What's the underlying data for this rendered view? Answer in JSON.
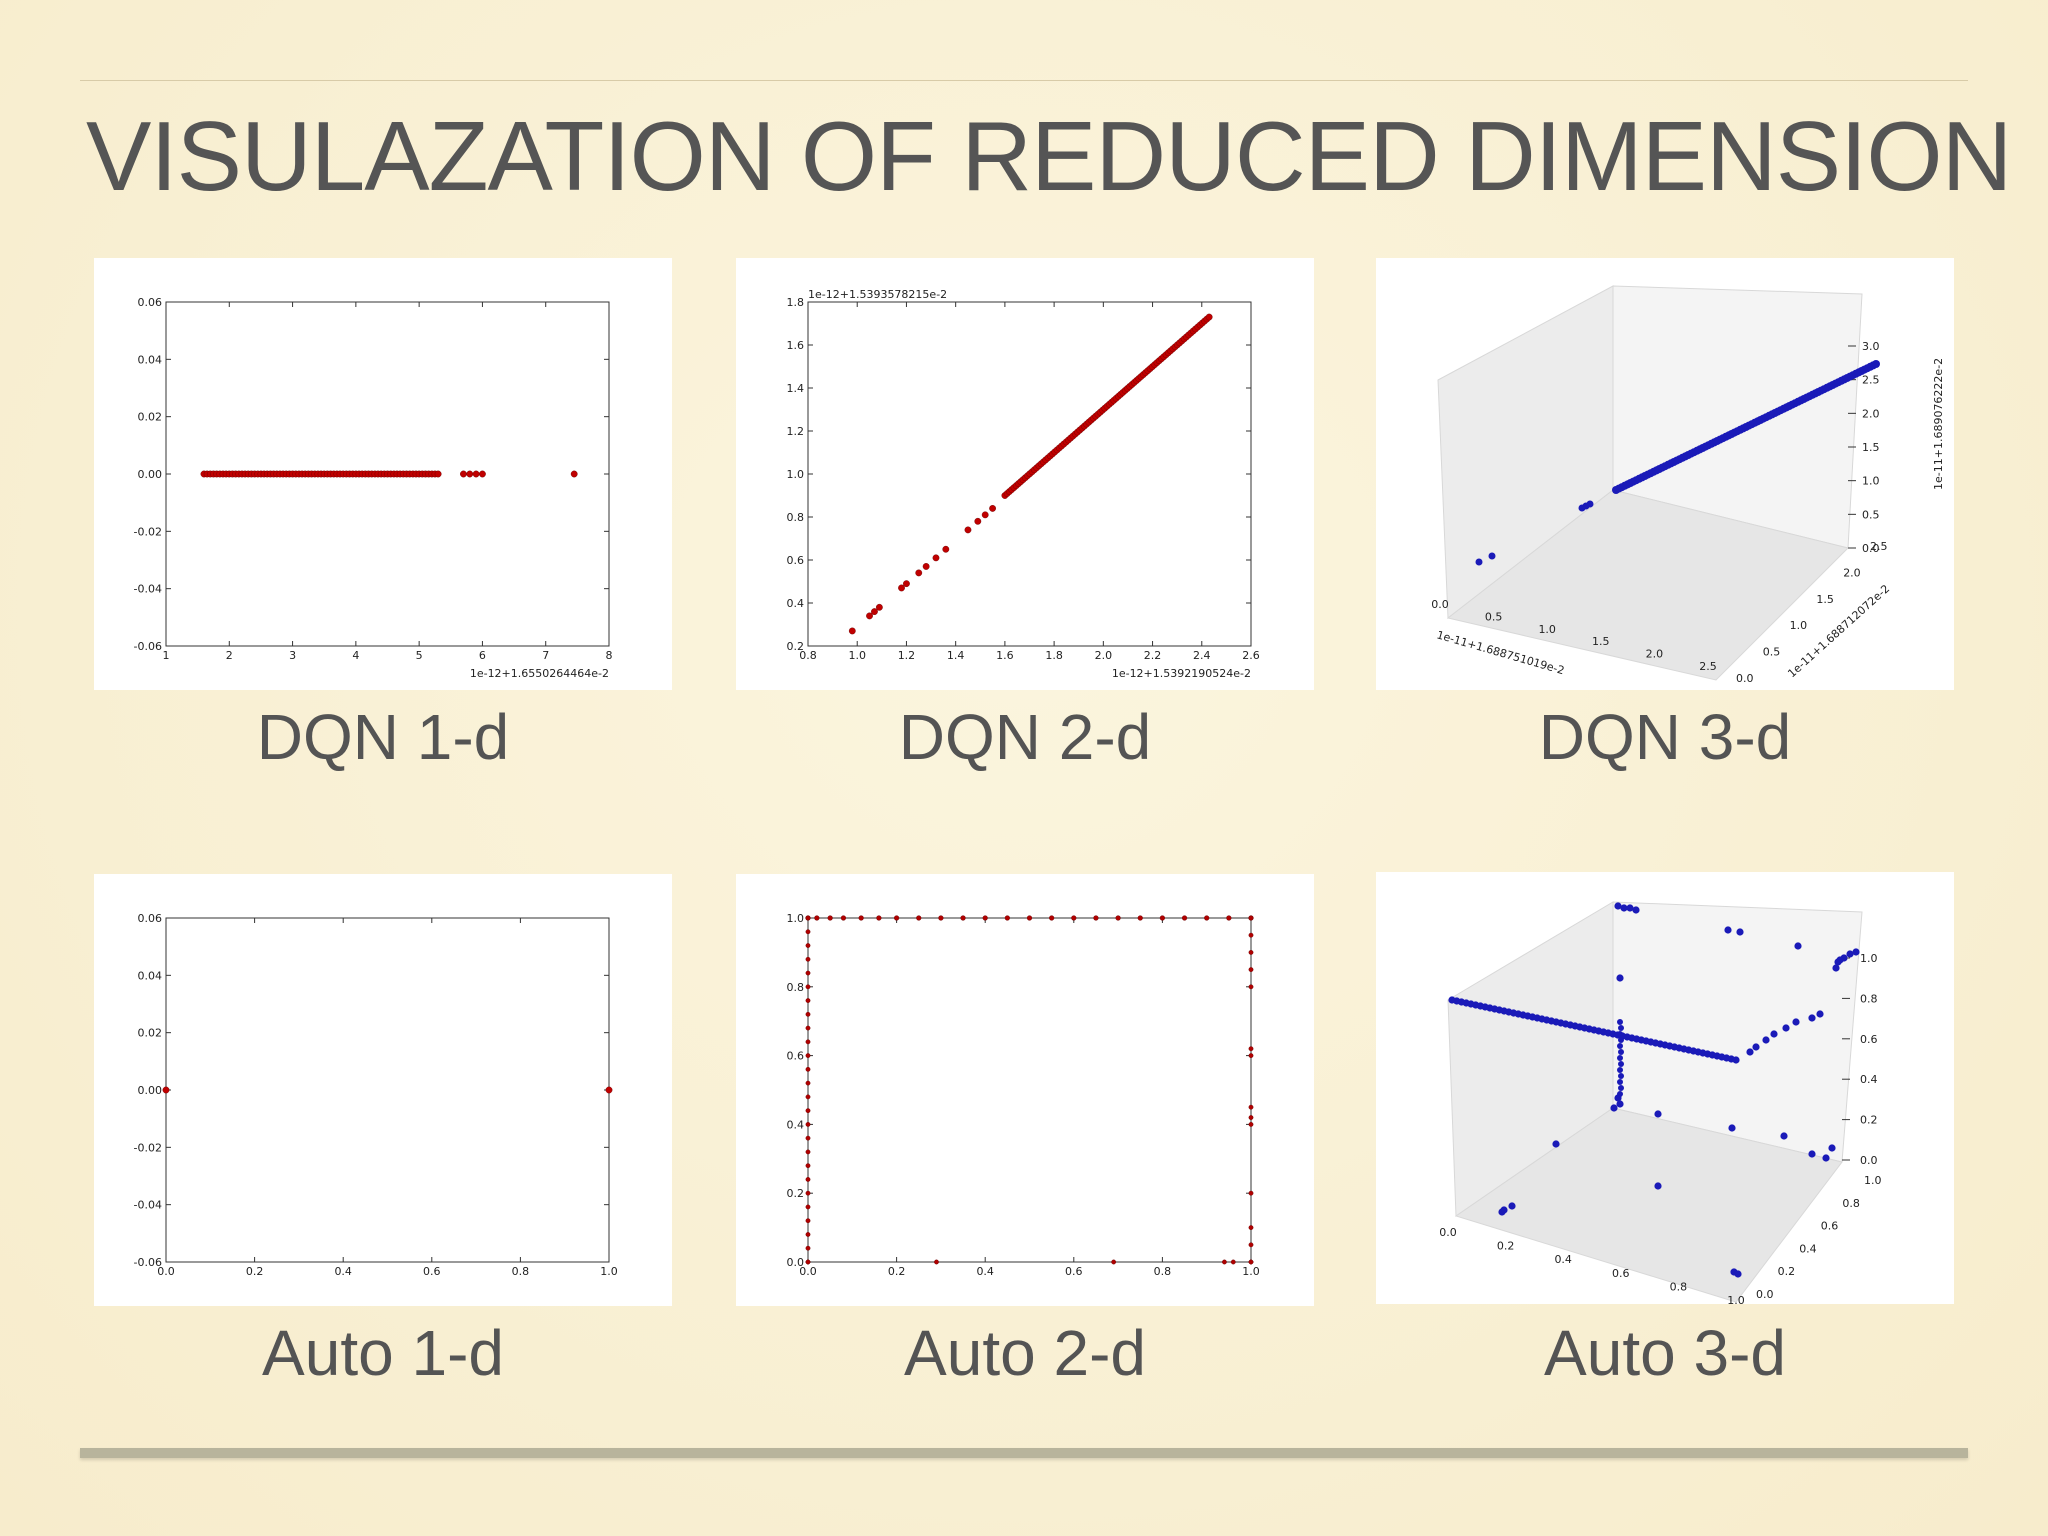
{
  "slide": {
    "title": "VISULAZATION OF REDUCED DIMENSION"
  },
  "colors": {
    "dqn_marker": "#c00000",
    "auto2d_marker": "#b00000",
    "marker_3d": "#1a1ab8"
  },
  "panels": [
    {
      "caption": "DQN 1-d"
    },
    {
      "caption": "DQN 2-d"
    },
    {
      "caption": "DQN 3-d"
    },
    {
      "caption": "Auto 1-d"
    },
    {
      "caption": "Auto 2-d"
    },
    {
      "caption": "Auto 3-d"
    }
  ],
  "chart_data": [
    {
      "type": "scatter",
      "title": "DQN 1-d",
      "xlim": [
        1,
        8
      ],
      "ylim": [
        -0.06,
        0.06
      ],
      "xticks": [
        "1",
        "2",
        "3",
        "4",
        "5",
        "6",
        "7",
        "8"
      ],
      "yticks": [
        "0.06",
        "0.04",
        "0.02",
        "0.00",
        "-0.02",
        "-0.04",
        "-0.06"
      ],
      "x_offset_label": "1e-12+1.6550264464e-2",
      "series": [
        {
          "segment_x": [
            1.6,
            5.3
          ],
          "y": 0.0,
          "x": [
            5.7,
            5.8,
            5.9,
            6.0,
            7.45
          ]
        }
      ]
    },
    {
      "type": "scatter",
      "title": "DQN 2-d",
      "xlim": [
        0.8,
        2.6
      ],
      "ylim": [
        0.2,
        1.8
      ],
      "xticks": [
        "0.8",
        "1.0",
        "1.2",
        "1.4",
        "1.6",
        "1.8",
        "2.0",
        "2.2",
        "2.4",
        "2.6"
      ],
      "yticks": [
        "1.8",
        "1.6",
        "1.4",
        "1.2",
        "1.0",
        "0.8",
        "0.6",
        "0.4",
        "0.2"
      ],
      "x_offset_label": "1e-12+1.5392190524e-2",
      "y_offset_label": "1e-12+1.5393578215e-2",
      "series": [
        {
          "segment": [
            [
              1.6,
              0.9
            ],
            [
              2.43,
              1.73
            ]
          ],
          "x": [
            0.98,
            1.05,
            1.07,
            1.09,
            1.18,
            1.2,
            1.25,
            1.28,
            1.32,
            1.36,
            1.45,
            1.49,
            1.52,
            1.55
          ],
          "y": [
            0.27,
            0.34,
            0.36,
            0.38,
            0.47,
            0.49,
            0.54,
            0.57,
            0.61,
            0.65,
            0.74,
            0.78,
            0.81,
            0.84
          ]
        }
      ]
    },
    {
      "type": "scatter3d",
      "title": "DQN 3-d",
      "xlim": [
        0.0,
        2.5
      ],
      "ylim": [
        0.0,
        2.5
      ],
      "zlim": [
        0.0,
        3.0
      ],
      "xticks": [
        "0.0",
        "0.5",
        "1.0",
        "1.5",
        "2.0",
        "2.5"
      ],
      "yticks": [
        "0.0",
        "0.5",
        "1.0",
        "1.5",
        "2.0",
        "2.5"
      ],
      "zticks": [
        "0.0",
        "0.5",
        "1.0",
        "1.5",
        "2.0",
        "2.5",
        "3.0"
      ],
      "x_offset_label": "1e-11+1.688751019e-2",
      "y_offset_label": "1e-11+1.688712072e-2",
      "z_offset_label": "1e-11+1.689076222e-2"
    },
    {
      "type": "scatter",
      "title": "Auto 1-d",
      "xlim": [
        0.0,
        1.0
      ],
      "ylim": [
        -0.06,
        0.06
      ],
      "xticks": [
        "0.0",
        "0.2",
        "0.4",
        "0.6",
        "0.8",
        "1.0"
      ],
      "yticks": [
        "0.06",
        "0.04",
        "0.02",
        "0.00",
        "-0.02",
        "-0.04",
        "-0.06"
      ],
      "series": [
        {
          "x": [
            0.0,
            1.0
          ],
          "y": [
            0.0,
            0.0
          ]
        }
      ]
    },
    {
      "type": "scatter",
      "title": "Auto 2-d",
      "xlim": [
        0.0,
        1.0
      ],
      "ylim": [
        0.0,
        1.0
      ],
      "xticks": [
        "0.0",
        "0.2",
        "0.4",
        "0.6",
        "0.8",
        "1.0"
      ],
      "yticks": [
        "1.0",
        "0.8",
        "0.6",
        "0.4",
        "0.2",
        "0.0"
      ],
      "series": [
        {
          "note": "points lie along the unit-square boundary"
        }
      ]
    },
    {
      "type": "scatter3d",
      "title": "Auto 3-d",
      "xlim": [
        0.0,
        1.0
      ],
      "ylim": [
        0.0,
        1.0
      ],
      "zlim": [
        0.0,
        1.0
      ],
      "xticks": [
        "0.0",
        "0.2",
        "0.4",
        "0.6",
        "0.8",
        "1.0"
      ],
      "yticks": [
        "0.0",
        "0.2",
        "0.4",
        "0.6",
        "0.8",
        "1.0"
      ],
      "zticks": [
        "0.0",
        "0.2",
        "0.4",
        "0.6",
        "0.8",
        "1.0"
      ]
    }
  ]
}
